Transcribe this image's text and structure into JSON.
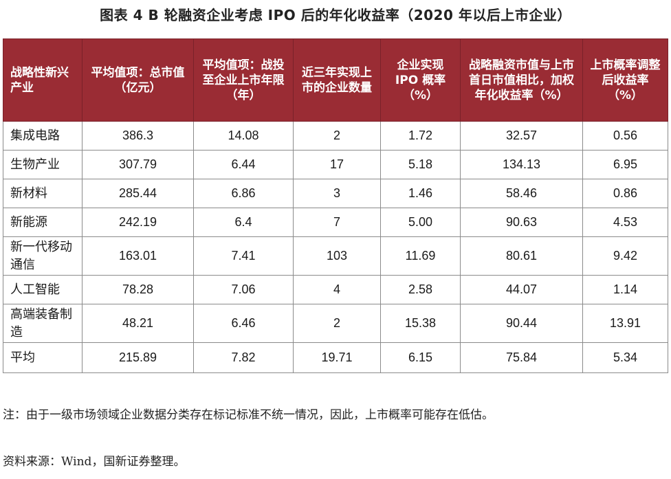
{
  "title": "图表 4  B 轮融资企业考虑 IPO 后的年化收益率（2020 年以后上市企业）",
  "table": {
    "headers": [
      "战略性新兴产业",
      "平均值项：总市值（亿元）",
      "平均值项：战投至企业上市年限（年）",
      "近三年实现上市的企业数量",
      "企业实现IPO 概率（%）",
      "战略融资市值与上市首日市值相比，加权年化收益率（%）",
      "上市概率调整后收益率（%）"
    ],
    "rows": [
      [
        "集成电路",
        "386.3",
        "14.08",
        "2",
        "1.72",
        "32.57",
        "0.56"
      ],
      [
        "生物产业",
        "307.79",
        "6.44",
        "17",
        "5.18",
        "134.13",
        "6.95"
      ],
      [
        "新材料",
        "285.44",
        "6.86",
        "3",
        "1.46",
        "58.46",
        "0.86"
      ],
      [
        "新能源",
        "242.19",
        "6.4",
        "7",
        "5.00",
        "90.63",
        "4.53"
      ],
      [
        "新一代移动通信",
        "163.01",
        "7.41",
        "103",
        "11.69",
        "80.61",
        "9.42"
      ],
      [
        "人工智能",
        "78.28",
        "7.06",
        "4",
        "2.58",
        "44.07",
        "1.14"
      ],
      [
        "高端装备制造",
        "48.21",
        "6.46",
        "2",
        "15.38",
        "90.44",
        "13.91"
      ],
      [
        "平均",
        "215.89",
        "7.82",
        "19.71",
        "6.15",
        "75.84",
        "5.34"
      ]
    ]
  },
  "note": "注：由于一级市场领域企业数据分类存在标记标准不统一情况，因此，上市概率可能存在低估。",
  "source": "资料来源：Wind，国新证券整理。",
  "colors": {
    "header_bg": "#9a2c34",
    "header_text": "#ffffff",
    "border": "#8a8a8a"
  }
}
